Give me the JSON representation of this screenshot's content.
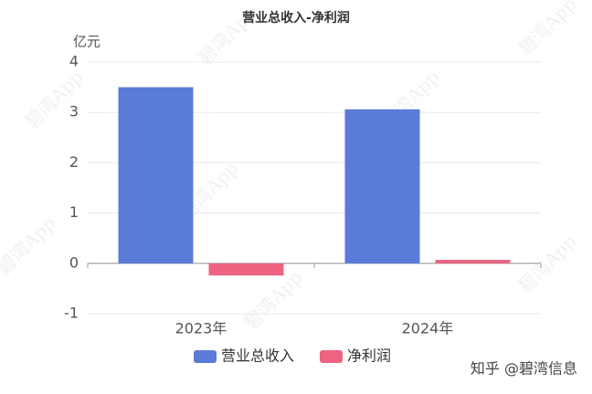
{
  "chart_data": {
    "type": "bar",
    "title": "营业总收入-净利润",
    "y_label": "亿元",
    "categories": [
      "2023年",
      "2024年"
    ],
    "series": [
      {
        "name": "营业总收入",
        "color": "#5b7bd8",
        "values": [
          3.5,
          3.06
        ]
      },
      {
        "name": "净利润",
        "color": "#ee6382",
        "values": [
          -0.24,
          0.07
        ]
      }
    ],
    "ylim": [
      -1,
      4
    ],
    "yticks": [
      -1,
      0,
      1,
      2,
      3,
      4
    ],
    "grid": true,
    "legend": "bottom",
    "watermark": "碧湾App",
    "footer": "知乎 @碧湾信息"
  }
}
